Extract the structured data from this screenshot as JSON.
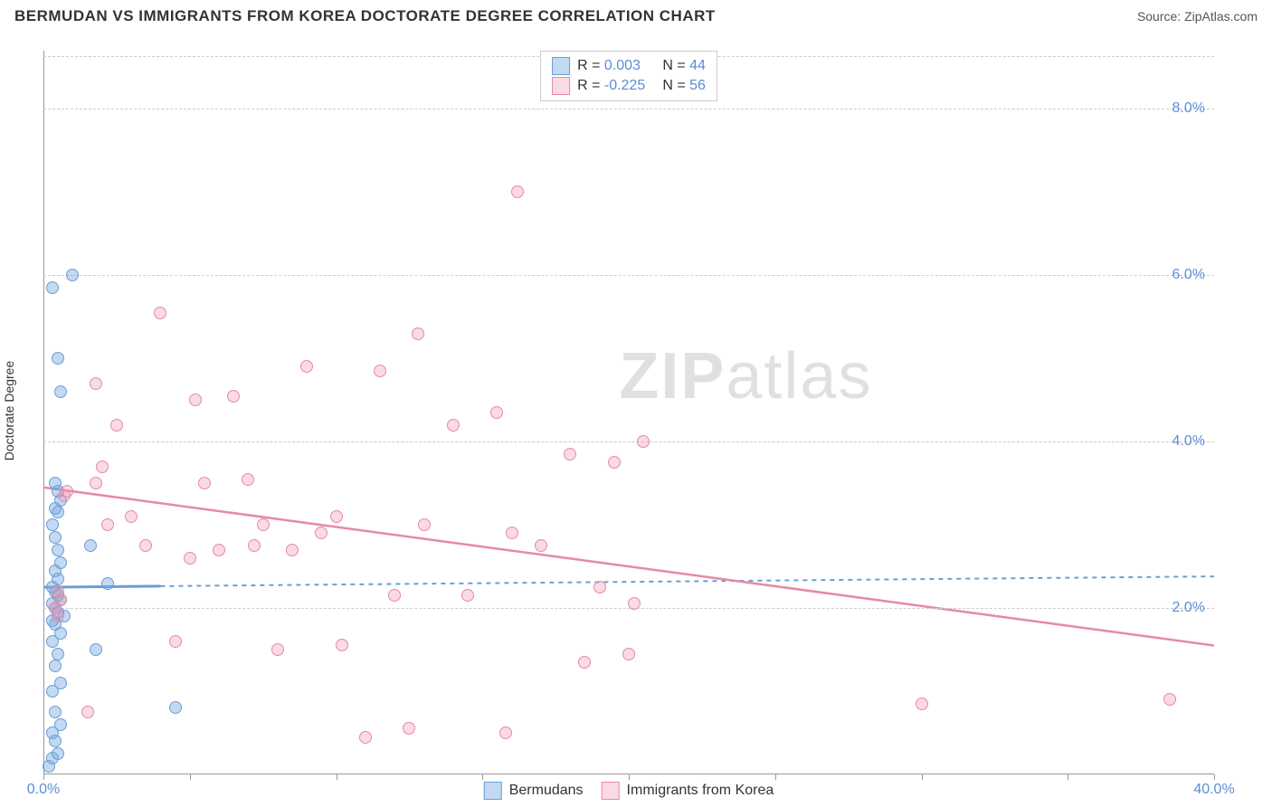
{
  "title": "BERMUDAN VS IMMIGRANTS FROM KOREA DOCTORATE DEGREE CORRELATION CHART",
  "source": "Source: ZipAtlas.com",
  "y_axis_label": "Doctorate Degree",
  "watermark_a": "ZIP",
  "watermark_b": "atlas",
  "chart": {
    "type": "scatter",
    "background_color": "#ffffff",
    "grid_color": "#cccccc",
    "axis_color": "#999999",
    "tick_label_color": "#5b8dd6",
    "xlim": [
      0,
      40
    ],
    "ylim": [
      0,
      8.7
    ],
    "y_ticks": [
      {
        "value": 2.0,
        "label": "2.0%"
      },
      {
        "value": 4.0,
        "label": "4.0%"
      },
      {
        "value": 6.0,
        "label": "6.0%"
      },
      {
        "value": 8.0,
        "label": "8.0%"
      }
    ],
    "x_ticks": [
      0,
      5,
      10,
      15,
      20,
      25,
      30,
      35,
      40
    ],
    "x_tick_labels": [
      {
        "value": 0,
        "label": "0.0%"
      },
      {
        "value": 40,
        "label": "40.0%"
      }
    ],
    "series": [
      {
        "name": "Bermudans",
        "fill": "rgba(120,170,225,0.45)",
        "stroke": "#6a9fd4",
        "r_value": "0.003",
        "n_value": "44",
        "trend": {
          "y_at_x0": 2.25,
          "y_at_xmax": 2.38,
          "dash": "5,5",
          "width": 2
        },
        "trend_solid_until_x": 4.0,
        "points": [
          [
            0.2,
            0.1
          ],
          [
            0.3,
            0.2
          ],
          [
            0.5,
            0.25
          ],
          [
            0.4,
            0.4
          ],
          [
            0.3,
            0.5
          ],
          [
            0.6,
            0.6
          ],
          [
            0.4,
            0.75
          ],
          [
            4.5,
            0.8
          ],
          [
            0.3,
            1.0
          ],
          [
            0.6,
            1.1
          ],
          [
            0.4,
            1.3
          ],
          [
            0.5,
            1.45
          ],
          [
            1.8,
            1.5
          ],
          [
            0.3,
            1.6
          ],
          [
            0.6,
            1.7
          ],
          [
            0.4,
            1.8
          ],
          [
            0.3,
            1.85
          ],
          [
            0.7,
            1.9
          ],
          [
            0.5,
            1.95
          ],
          [
            0.4,
            2.0
          ],
          [
            0.3,
            2.05
          ],
          [
            0.6,
            2.1
          ],
          [
            0.5,
            2.15
          ],
          [
            0.4,
            2.2
          ],
          [
            0.3,
            2.25
          ],
          [
            2.2,
            2.3
          ],
          [
            0.5,
            2.35
          ],
          [
            0.4,
            2.45
          ],
          [
            0.6,
            2.55
          ],
          [
            0.5,
            2.7
          ],
          [
            1.6,
            2.75
          ],
          [
            0.4,
            2.85
          ],
          [
            0.3,
            3.0
          ],
          [
            0.5,
            3.15
          ],
          [
            0.4,
            3.2
          ],
          [
            0.6,
            3.3
          ],
          [
            0.5,
            3.4
          ],
          [
            0.4,
            3.5
          ],
          [
            0.6,
            4.6
          ],
          [
            0.5,
            5.0
          ],
          [
            0.3,
            5.85
          ],
          [
            1.0,
            6.0
          ]
        ]
      },
      {
        "name": "Immigrants from Korea",
        "fill": "rgba(240,150,175,0.35)",
        "stroke": "#e58aa5",
        "r_value": "-0.225",
        "n_value": "56",
        "trend": {
          "y_at_x0": 3.45,
          "y_at_xmax": 1.55,
          "dash": "none",
          "width": 2.5
        },
        "points": [
          [
            0.5,
            1.9
          ],
          [
            0.4,
            2.0
          ],
          [
            0.6,
            2.1
          ],
          [
            0.5,
            2.2
          ],
          [
            0.7,
            3.35
          ],
          [
            0.8,
            3.4
          ],
          [
            1.8,
            4.7
          ],
          [
            1.5,
            0.75
          ],
          [
            1.8,
            3.5
          ],
          [
            2.0,
            3.7
          ],
          [
            2.2,
            3.0
          ],
          [
            2.5,
            4.2
          ],
          [
            3.0,
            3.1
          ],
          [
            3.5,
            2.75
          ],
          [
            4.0,
            5.55
          ],
          [
            4.5,
            1.6
          ],
          [
            5.0,
            2.6
          ],
          [
            5.2,
            4.5
          ],
          [
            5.5,
            3.5
          ],
          [
            6.0,
            2.7
          ],
          [
            6.5,
            4.55
          ],
          [
            7.0,
            3.55
          ],
          [
            7.2,
            2.75
          ],
          [
            7.5,
            3.0
          ],
          [
            8.0,
            1.5
          ],
          [
            8.5,
            2.7
          ],
          [
            9.0,
            4.9
          ],
          [
            9.5,
            2.9
          ],
          [
            10.0,
            3.1
          ],
          [
            10.2,
            1.55
          ],
          [
            11.0,
            0.45
          ],
          [
            11.5,
            4.85
          ],
          [
            12.0,
            2.15
          ],
          [
            12.5,
            0.55
          ],
          [
            12.8,
            5.3
          ],
          [
            13.0,
            3.0
          ],
          [
            14.0,
            4.2
          ],
          [
            14.5,
            2.15
          ],
          [
            15.5,
            4.35
          ],
          [
            15.8,
            0.5
          ],
          [
            16.0,
            2.9
          ],
          [
            16.2,
            7.0
          ],
          [
            17.0,
            2.75
          ],
          [
            18.0,
            3.85
          ],
          [
            18.5,
            1.35
          ],
          [
            19.0,
            2.25
          ],
          [
            19.5,
            3.75
          ],
          [
            20.0,
            1.45
          ],
          [
            20.2,
            2.05
          ],
          [
            20.5,
            4.0
          ],
          [
            30.0,
            0.85
          ],
          [
            38.5,
            0.9
          ]
        ]
      }
    ]
  },
  "legend_top": {
    "r_label": "R =",
    "n_label": "N ="
  },
  "legend_bottom_label_a": "Bermudans",
  "legend_bottom_label_b": "Immigrants from Korea"
}
